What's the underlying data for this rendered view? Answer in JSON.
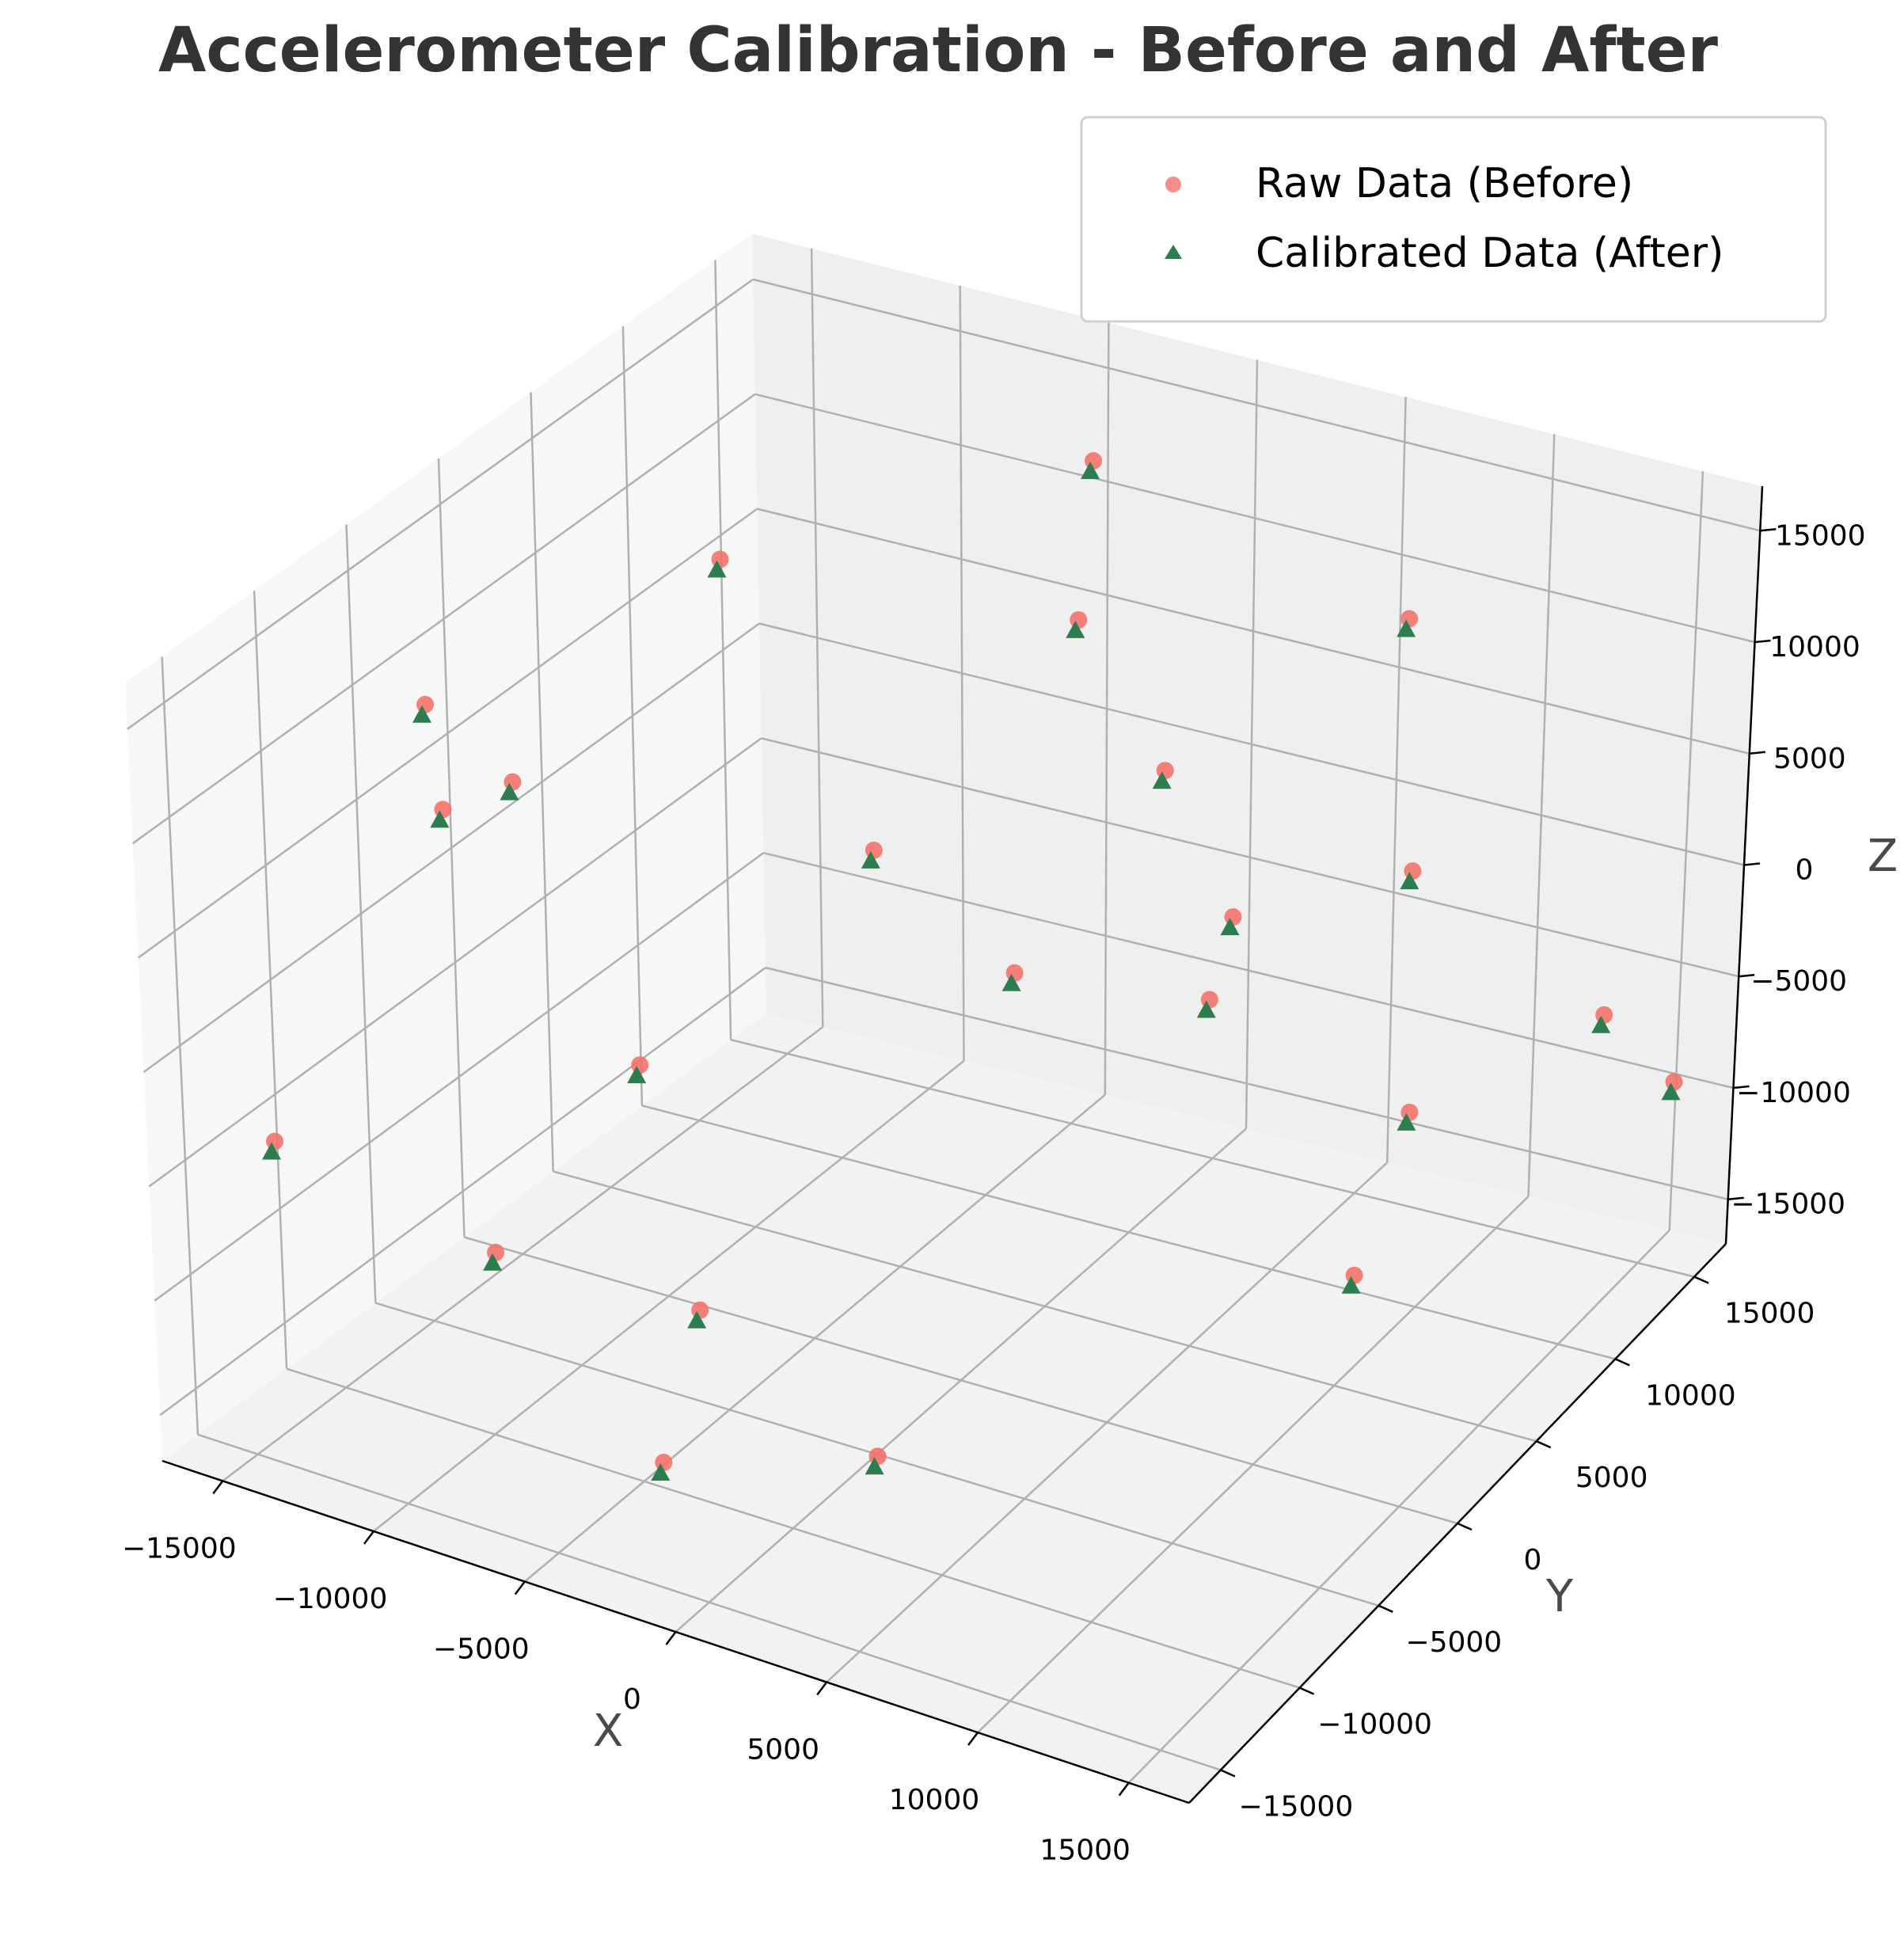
{
  "chart_data": {
    "type": "scatter",
    "title": "Accelerometer Calibration - Before and After",
    "xlabel": "X",
    "ylabel": "Y",
    "zlabel": "Z",
    "xlim": [
      -17000,
      17000
    ],
    "ylim": [
      -17000,
      17000
    ],
    "zlim": [
      -17000,
      17000
    ],
    "x_ticks": [
      "−15000",
      "−10000",
      "−5000",
      "0",
      "5000",
      "10000",
      "15000"
    ],
    "y_ticks": [
      "−15000",
      "−10000",
      "−5000",
      "0",
      "5000",
      "10000",
      "15000"
    ],
    "z_ticks": [
      "−15000",
      "−10000",
      "−5000",
      "0",
      "5000",
      "10000",
      "15000"
    ],
    "grid": true,
    "legend_position": "top-right",
    "series": [
      {
        "name": "Raw Data (Before)",
        "marker": "circle",
        "color": "#f4726a",
        "points": [
          {
            "x": -14000,
            "y": -6000,
            "z": 10800
          },
          {
            "x": -16000,
            "y": -2000,
            "z": 3100
          },
          {
            "x": -15000,
            "y": 200,
            "z": 3400
          },
          {
            "x": -9000,
            "y": 2000,
            "z": 14300
          },
          {
            "x": -3000,
            "y": 12000,
            "z": 7600
          },
          {
            "x": -9000,
            "y": -3000,
            "z": -4800
          },
          {
            "x": -14000,
            "y": -15000,
            "z": -3000
          },
          {
            "x": -8000,
            "y": -13000,
            "z": -6500
          },
          {
            "x": -4000,
            "y": 14500,
            "z": 12700
          },
          {
            "x": 7000,
            "y": 14000,
            "z": 9700
          },
          {
            "x": 4000,
            "y": 5000,
            "z": 7900
          },
          {
            "x": -4000,
            "y": 2000,
            "z": 3400
          },
          {
            "x": 3000,
            "y": -2000,
            "z": 3200
          },
          {
            "x": 8000,
            "y": 2000,
            "z": 4900
          },
          {
            "x": 9000,
            "y": 11000,
            "z": 1200
          },
          {
            "x": 5000,
            "y": 6000,
            "z": -2500
          },
          {
            "x": 14000,
            "y": 2000,
            "z": -1500
          },
          {
            "x": 13500,
            "y": 15000,
            "z": -6500
          },
          {
            "x": 16000,
            "y": 15000,
            "z": -8700
          },
          {
            "x": -3000,
            "y": -10000,
            "z": -8800
          },
          {
            "x": 4000,
            "y": -12000,
            "z": -11000
          },
          {
            "x": 16000,
            "y": -5000,
            "z": -3000
          },
          {
            "x": -2000,
            "y": -14000,
            "z": -12500
          }
        ]
      },
      {
        "name": "Calibrated Data (After)",
        "marker": "triangle",
        "color": "#2e7d4f",
        "points": [
          {
            "x": -14000,
            "y": -6000,
            "z": 10800
          },
          {
            "x": -16000,
            "y": -2000,
            "z": 3100
          },
          {
            "x": -15000,
            "y": 200,
            "z": 3400
          },
          {
            "x": -9000,
            "y": 2000,
            "z": 14300
          },
          {
            "x": -3000,
            "y": 12000,
            "z": 7600
          },
          {
            "x": -9000,
            "y": -3000,
            "z": -4800
          },
          {
            "x": -14000,
            "y": -15000,
            "z": -3000
          },
          {
            "x": -8000,
            "y": -13000,
            "z": -6500
          },
          {
            "x": -4000,
            "y": 14500,
            "z": 12700
          },
          {
            "x": 7000,
            "y": 14000,
            "z": 9700
          },
          {
            "x": 4000,
            "y": 5000,
            "z": 7900
          },
          {
            "x": -4000,
            "y": 2000,
            "z": 3400
          },
          {
            "x": 3000,
            "y": -2000,
            "z": 3200
          },
          {
            "x": 8000,
            "y": 2000,
            "z": 4900
          },
          {
            "x": 9000,
            "y": 11000,
            "z": 1200
          },
          {
            "x": 5000,
            "y": 6000,
            "z": -2500
          },
          {
            "x": 14000,
            "y": 2000,
            "z": -1500
          },
          {
            "x": 13500,
            "y": 15000,
            "z": -6500
          },
          {
            "x": 16000,
            "y": 15000,
            "z": -8700
          },
          {
            "x": -3000,
            "y": -10000,
            "z": -8800
          },
          {
            "x": 4000,
            "y": -12000,
            "z": -11000
          },
          {
            "x": 16000,
            "y": -5000,
            "z": -3000
          },
          {
            "x": -2000,
            "y": -14000,
            "z": -12500
          }
        ]
      }
    ]
  }
}
